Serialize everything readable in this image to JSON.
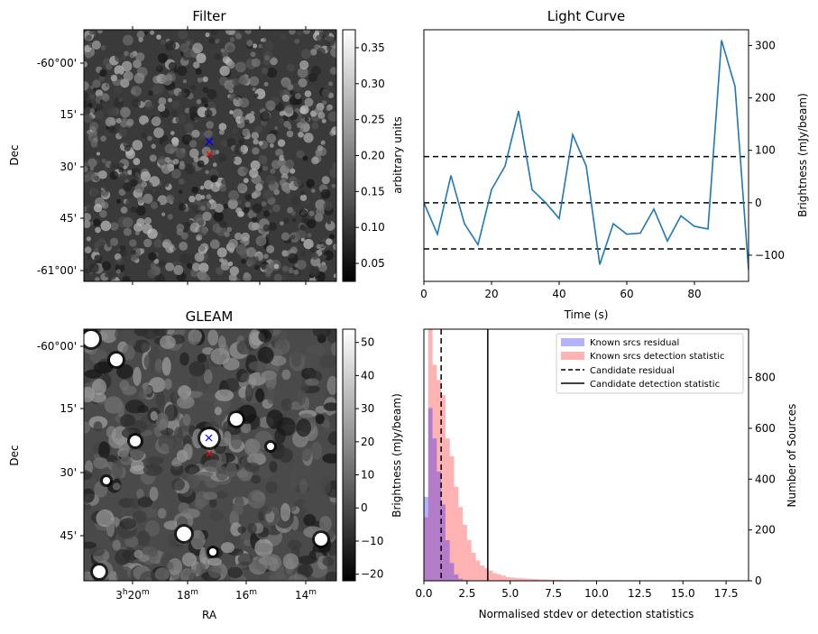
{
  "chart_data": [
    {
      "type": "heatmap",
      "title": "Filter",
      "xlabel": "",
      "ylabel": "Dec",
      "y_ticks": [
        "-60°00'",
        "15'",
        "30'",
        "45'",
        "-61°00'"
      ],
      "colorbar": {
        "label": "arbitrary units",
        "range": [
          0.025,
          0.375
        ],
        "ticks": [
          "0.35",
          "0.30",
          "0.25",
          "0.20",
          "0.15",
          "0.10",
          "0.05"
        ],
        "colormap": "gray"
      },
      "markers": [
        {
          "symbol": "x",
          "color": "#0000ff",
          "label": "blue"
        },
        {
          "symbol": "x",
          "color": "#ff0000",
          "label": "red"
        }
      ]
    },
    {
      "type": "line",
      "title": "Light Curve",
      "xlabel": "Time (s)",
      "ylabel": "Brightness (mJy/beam)",
      "xlim": [
        0,
        96
      ],
      "ylim": [
        -150,
        330
      ],
      "x_ticks": [
        "0",
        "20",
        "40",
        "60",
        "80"
      ],
      "y_ticks": [
        "300",
        "200",
        "100",
        "0",
        "-100"
      ],
      "x": [
        0,
        4,
        8,
        12,
        16,
        20,
        24,
        28,
        32,
        36,
        40,
        44,
        48,
        52,
        56,
        60,
        64,
        68,
        72,
        76,
        80,
        84,
        88,
        92,
        96
      ],
      "values": [
        0,
        -60,
        52,
        -40,
        -80,
        25,
        70,
        175,
        25,
        0,
        -30,
        130,
        70,
        -118,
        -40,
        -60,
        -58,
        -12,
        -73,
        -25,
        -45,
        -50,
        310,
        222,
        -128
      ],
      "color": "#1f77b4",
      "hlines": [
        {
          "y": 88,
          "style": "dashed"
        },
        {
          "y": 0,
          "style": "dashed"
        },
        {
          "y": -88,
          "style": "dashed"
        }
      ]
    },
    {
      "type": "heatmap",
      "title": "GLEAM",
      "xlabel": "RA",
      "ylabel": "Dec",
      "x_ticks": [
        "3h20m",
        "18m",
        "16m",
        "14m"
      ],
      "y_ticks": [
        "-60°00'",
        "15'",
        "30'",
        "45'"
      ],
      "colorbar": {
        "label": "Brightness (mJy/beam)",
        "range": [
          -22,
          54
        ],
        "ticks": [
          "50",
          "40",
          "30",
          "20",
          "10",
          "0",
          "−10",
          "−20"
        ],
        "colormap": "gray"
      },
      "markers": [
        {
          "symbol": "x",
          "color": "#0000ff",
          "label": "blue"
        },
        {
          "symbol": "x",
          "color": "#ff0000",
          "label": "red"
        }
      ]
    },
    {
      "type": "bar",
      "title": "",
      "xlabel": "Normalised stdev or detection statistics",
      "ylabel": "Number of Sources",
      "xlim": [
        0,
        18.8
      ],
      "ylim": [
        0,
        990
      ],
      "x_ticks": [
        "0.0",
        "2.5",
        "5.0",
        "7.5",
        "10.0",
        "12.5",
        "15.0",
        "17.5"
      ],
      "y_ticks": [
        "0",
        "200",
        "400",
        "600",
        "800"
      ],
      "bin_width": 0.25,
      "series": [
        {
          "name": "Known srcs residual",
          "color": "#b3b3ff",
          "values": [
            330,
            680,
            560,
            430,
            300,
            160,
            70,
            25,
            8,
            3
          ]
        },
        {
          "name": "Known srcs detection statistic",
          "color": "#ffb3b3",
          "values": [
            250,
            990,
            850,
            790,
            730,
            560,
            490,
            370,
            290,
            220,
            160,
            110,
            80,
            60,
            50,
            40,
            30,
            25,
            20,
            15,
            13,
            11,
            10,
            9,
            8,
            7,
            6,
            5,
            5,
            4,
            4,
            4,
            3,
            3,
            3,
            3,
            2,
            2,
            2,
            2,
            2,
            2,
            2,
            2,
            2,
            1,
            1,
            1,
            1,
            1,
            1,
            1,
            1,
            1,
            1,
            1,
            1,
            1,
            1,
            1,
            1,
            1,
            1,
            1,
            1,
            1,
            1,
            1,
            1,
            1,
            1,
            1,
            1,
            1
          ]
        }
      ],
      "vlines": [
        {
          "name": "Candidate residual",
          "x": 1.0,
          "style": "dashed"
        },
        {
          "name": "Candidate detection statistic",
          "x": 3.7,
          "style": "solid"
        }
      ],
      "legend_position": "top-right"
    }
  ],
  "extra_axis_labels": {
    "hist_left_ylabel": "Brightness (mJy/beam)"
  }
}
